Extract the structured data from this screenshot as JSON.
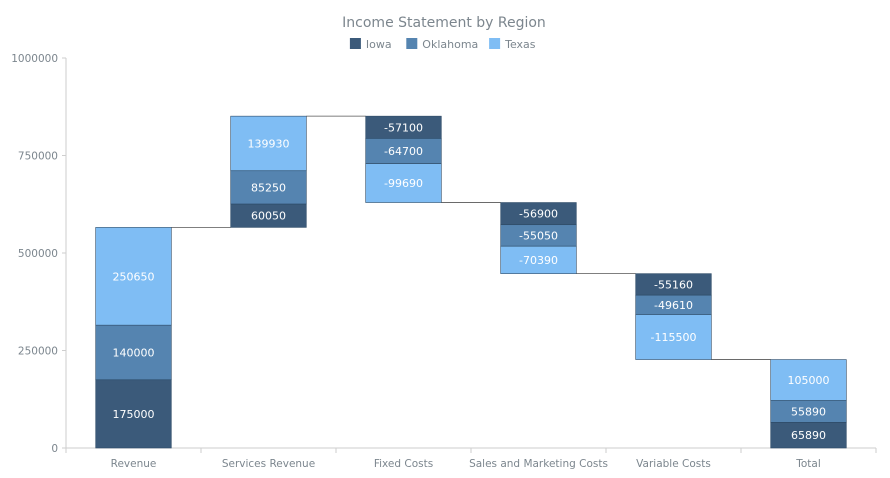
{
  "chart_data": {
    "type": "bar",
    "subtype": "stacked-waterfall",
    "title": "Income Statement by Region",
    "categories": [
      "Revenue",
      "Services Revenue",
      "Fixed Costs",
      "Sales and Marketing Costs",
      "Variable Costs",
      "Total"
    ],
    "series": [
      {
        "name": "Iowa",
        "color": "#3b5a7a",
        "values": [
          175000,
          60050,
          -57100,
          -56900,
          -55160,
          65890
        ]
      },
      {
        "name": "Oklahoma",
        "color": "#5584b0",
        "values": [
          140000,
          85250,
          -64700,
          -55050,
          -49610,
          55890
        ]
      },
      {
        "name": "Texas",
        "color": "#7fbdf4",
        "values": [
          250650,
          139930,
          -99690,
          -70390,
          -115500,
          105000
        ]
      }
    ],
    "is_total": [
      false,
      false,
      false,
      false,
      false,
      true
    ],
    "ylim": [
      0,
      1000000
    ],
    "yticks": [
      0,
      250000,
      500000,
      750000,
      1000000
    ],
    "xlabel": "",
    "ylabel": "",
    "legend_position": "top",
    "grid": false
  }
}
